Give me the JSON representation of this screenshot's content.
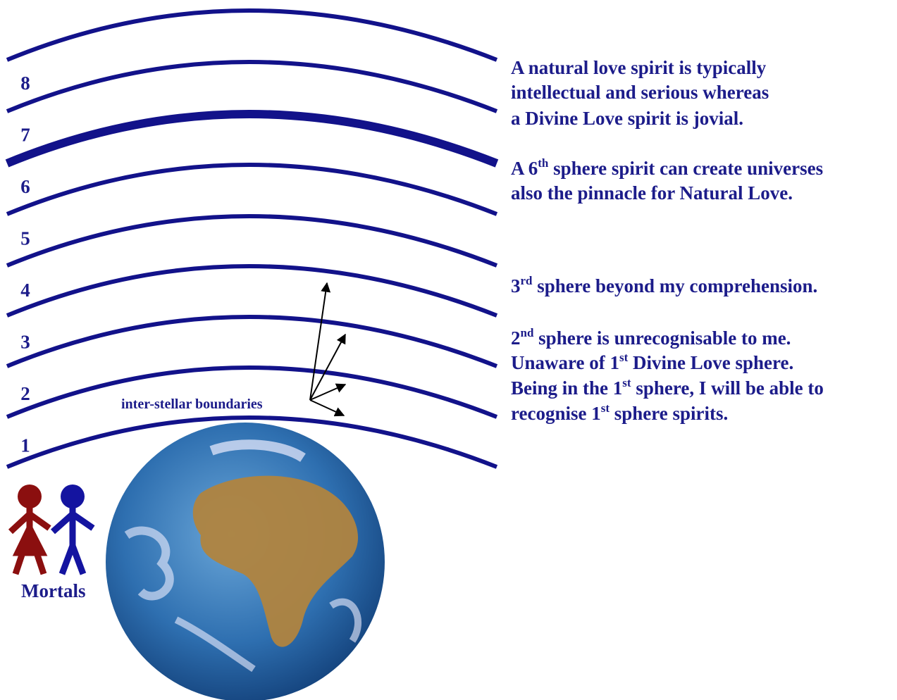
{
  "sphere_labels": [
    "8",
    "7",
    "6",
    "5",
    "4",
    "3",
    "2",
    "1"
  ],
  "boundary_label": "inter-stellar boundaries",
  "mortals_label": "Mortals",
  "notes": [
    {
      "lines": [
        [
          {
            "text": "A natural love spirit is typically"
          }
        ],
        [
          {
            "text": "intellectual and serious whereas"
          }
        ],
        [
          {
            "text": "a Divine Love spirit is jovial."
          }
        ]
      ]
    },
    {
      "lines": [
        [
          {
            "text": "A 6"
          },
          {
            "sup": "th"
          },
          {
            "text": " sphere spirit can create universes"
          }
        ],
        [
          {
            "text": "also the pinnacle for Natural Love."
          }
        ]
      ]
    },
    {
      "lines": [
        [
          {
            "text": "3"
          },
          {
            "sup": "rd"
          },
          {
            "text": " sphere beyond my comprehension."
          }
        ]
      ]
    },
    {
      "lines": [
        [
          {
            "text": "2"
          },
          {
            "sup": "nd"
          },
          {
            "text": " sphere is unrecognisable to me."
          }
        ],
        [
          {
            "text": "Unaware of 1"
          },
          {
            "sup": "st"
          },
          {
            "text": " Divine Love sphere."
          }
        ],
        [
          {
            "text": "Being in the 1"
          },
          {
            "sup": "st"
          },
          {
            "text": " sphere, I will be able to"
          }
        ],
        [
          {
            "text": "recognise 1"
          },
          {
            "sup": "st"
          },
          {
            "text": " sphere spirits."
          }
        ]
      ]
    }
  ]
}
